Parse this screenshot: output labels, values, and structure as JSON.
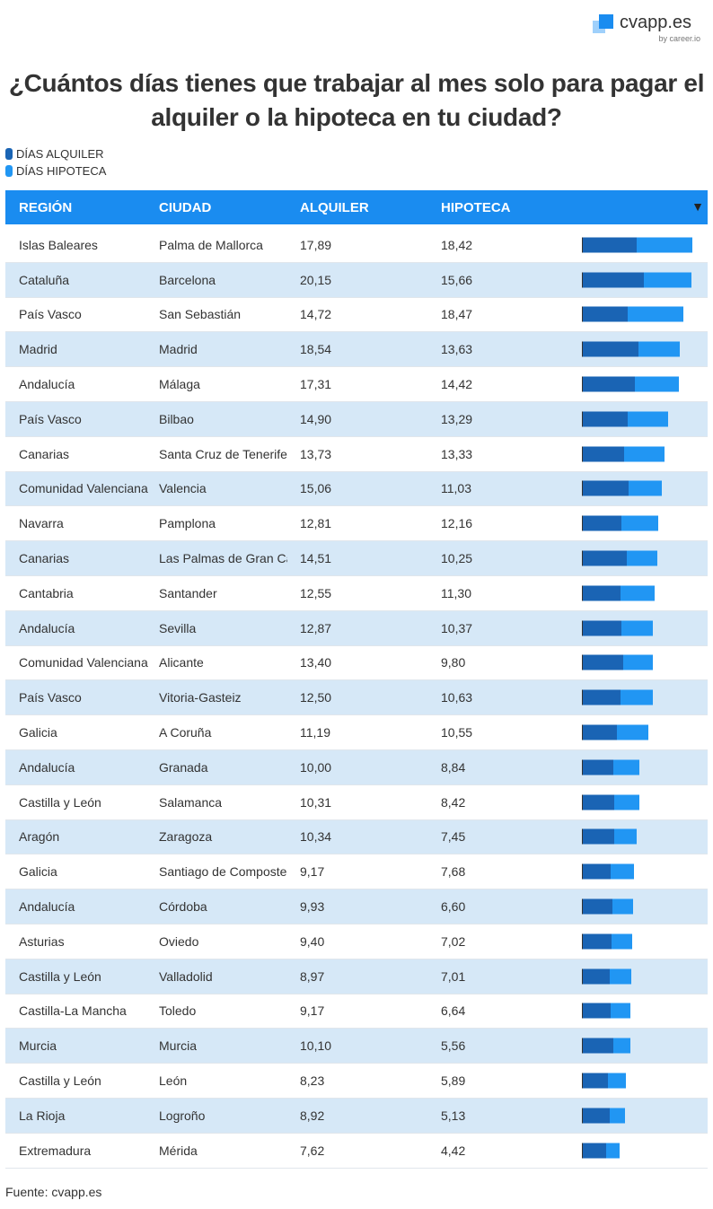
{
  "logo": {
    "name": "cvapp.es",
    "by": "by career.io"
  },
  "title": "¿Cuántos días tienes que trabajar al mes solo para pagar el alquiler o la hipoteca en tu ciudad?",
  "legend": [
    {
      "label": "DÍAS ALQUILER",
      "color": "#1a64b4"
    },
    {
      "label": "DÍAS HIPOTECA",
      "color": "#2196f3"
    }
  ],
  "headers": [
    "REGIÓN",
    "CIUDAD",
    "ALQUILER",
    "HIPOTECA"
  ],
  "sort_icon": "▼",
  "source": "Fuente: cvapp.es",
  "chart_data": {
    "type": "table",
    "bar_type": "stacked-bar",
    "columns": [
      "REGIÓN",
      "CIUDAD",
      "ALQUILER",
      "HIPOTECA"
    ],
    "rows": [
      [
        "Islas Baleares",
        "Palma de Mallorca",
        "17,89",
        "18,42"
      ],
      [
        "Cataluña",
        "Barcelona",
        "20,15",
        "15,66"
      ],
      [
        "País Vasco",
        "San Sebastián",
        "14,72",
        "18,47"
      ],
      [
        "Madrid",
        "Madrid",
        "18,54",
        "13,63"
      ],
      [
        "Andalucía",
        "Málaga",
        "17,31",
        "14,42"
      ],
      [
        "País Vasco",
        "Bilbao",
        "14,90",
        "13,29"
      ],
      [
        "Canarias",
        "Santa Cruz de Tenerife",
        "13,73",
        "13,33"
      ],
      [
        "Comunidad Valenciana",
        "Valencia",
        "15,06",
        "11,03"
      ],
      [
        "Navarra",
        "Pamplona",
        "12,81",
        "12,16"
      ],
      [
        "Canarias",
        "Las Palmas de Gran Canaria",
        "14,51",
        "10,25"
      ],
      [
        "Cantabria",
        "Santander",
        "12,55",
        "11,30"
      ],
      [
        "Andalucía",
        "Sevilla",
        "12,87",
        "10,37"
      ],
      [
        "Comunidad Valenciana",
        "Alicante",
        "13,40",
        "9,80"
      ],
      [
        "País Vasco",
        "Vitoria-Gasteiz",
        "12,50",
        "10,63"
      ],
      [
        "Galicia",
        "A Coruña",
        "11,19",
        "10,55"
      ],
      [
        "Andalucía",
        "Granada",
        "10,00",
        "8,84"
      ],
      [
        "Castilla y León",
        "Salamanca",
        "10,31",
        "8,42"
      ],
      [
        "Aragón",
        "Zaragoza",
        "10,34",
        "7,45"
      ],
      [
        "Galicia",
        "Santiago de Compostela",
        "9,17",
        "7,68"
      ],
      [
        "Andalucía",
        "Córdoba",
        "9,93",
        "6,60"
      ],
      [
        "Asturias",
        "Oviedo",
        "9,40",
        "7,02"
      ],
      [
        "Castilla y León",
        "Valladolid",
        "8,97",
        "7,01"
      ],
      [
        "Castilla-La Mancha",
        "Toledo",
        "9,17",
        "6,64"
      ],
      [
        "Murcia",
        "Murcia",
        "10,10",
        "5,56"
      ],
      [
        "Castilla y León",
        "León",
        "8,23",
        "5,89"
      ],
      [
        "La Rioja",
        "Logroño",
        "8,92",
        "5,13"
      ],
      [
        "Extremadura",
        "Mérida",
        "7,62",
        "4,42"
      ]
    ]
  }
}
